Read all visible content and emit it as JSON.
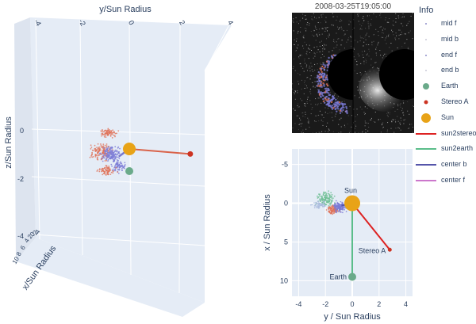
{
  "chart_data": [
    {
      "type": "scatter",
      "title": "",
      "xlabel": "x/Sun Radius",
      "ylabel": "y/Sun Radius",
      "zlabel": "z/Sun Radius",
      "y_ticks": [
        "-4",
        "-2",
        "0",
        "2",
        "4"
      ],
      "z_ticks": [
        "-4",
        "-2",
        "0"
      ],
      "x_ticks": [
        "10",
        "8",
        "6",
        "4",
        "2",
        "0",
        "-2",
        "-4"
      ],
      "grid": true,
      "series": [
        {
          "name": "Sun",
          "points": [
            [
              0,
              0,
              0
            ]
          ],
          "color": "#e8a317"
        },
        {
          "name": "Earth",
          "points": [
            [
              0,
              0,
              -0.5
            ]
          ],
          "color": "#6aaa8a"
        },
        {
          "name": "Stereo A",
          "points": [
            [
              0,
              2.9,
              -0.2
            ]
          ],
          "color": "#cc3322"
        },
        {
          "name": "sun2stereo",
          "line": [
            [
              0,
              0,
              0
            ],
            [
              0,
              2.9,
              -0.2
            ]
          ],
          "color": "#cc3322"
        },
        {
          "name": "center b",
          "line": [
            [
              0,
              0,
              0
            ],
            [
              0,
              -0.5,
              -0.3
            ]
          ],
          "color": "#6b6bb8"
        }
      ]
    },
    {
      "type": "scatter",
      "title": "",
      "xlabel": "y / Sun Radius",
      "ylabel": "x / Sun Radius",
      "x_ticks": [
        -4,
        -2,
        0,
        2,
        4
      ],
      "y_ticks": [
        -5,
        0,
        5,
        10
      ],
      "xlim": [
        -4.5,
        4.5
      ],
      "ylim": [
        -7,
        12
      ],
      "y_reversed": true,
      "grid": true,
      "series": [
        {
          "name": "Sun",
          "points": [
            [
              0,
              0
            ]
          ],
          "label": "Sun",
          "color": "#e8a317"
        },
        {
          "name": "Earth",
          "points": [
            [
              0,
              9.5
            ]
          ],
          "label": "Earth",
          "color": "#6aaa8a"
        },
        {
          "name": "Stereo A",
          "points": [
            [
              2.8,
              6
            ]
          ],
          "label": "Stereo A",
          "color": "#cc3322"
        },
        {
          "name": "sun2stereo",
          "line": [
            [
              0,
              0
            ],
            [
              2.8,
              6
            ]
          ],
          "color": "#cc3322"
        },
        {
          "name": "sun2earth",
          "line": [
            [
              0,
              0
            ],
            [
              0,
              9.5
            ]
          ],
          "color": "#6aaa8a"
        },
        {
          "name": "center b",
          "line": [
            [
              0,
              0
            ],
            [
              -0.8,
              0.3
            ]
          ],
          "color": "#6b6bb8"
        }
      ]
    }
  ],
  "coronagraph": {
    "title": "2008-03-25T19:05:00"
  },
  "legend": {
    "title": "Info",
    "items": [
      {
        "label": "mid f",
        "symbol": "dot",
        "color": "#6b6bb8"
      },
      {
        "label": "mid b",
        "symbol": "dot",
        "color": "#bbbbcc"
      },
      {
        "label": "end f",
        "symbol": "dot",
        "color": "#6b6bb8"
      },
      {
        "label": "end b",
        "symbol": "dot",
        "color": "#bbbbcc"
      },
      {
        "label": "Earth",
        "symbol": "marker",
        "color": "#6aaa8a"
      },
      {
        "label": "Stereo A",
        "symbol": "small-marker",
        "color": "#cc3322"
      },
      {
        "label": "Sun",
        "symbol": "big-marker",
        "color": "#e8a317"
      },
      {
        "label": "sun2stereo",
        "symbol": "line",
        "color": "#dd2222"
      },
      {
        "label": "sun2earth",
        "symbol": "line",
        "color": "#5bbd8a"
      },
      {
        "label": "center b",
        "symbol": "line",
        "color": "#5555aa"
      },
      {
        "label": "center f",
        "symbol": "line",
        "color": "#cc77cc"
      }
    ]
  }
}
